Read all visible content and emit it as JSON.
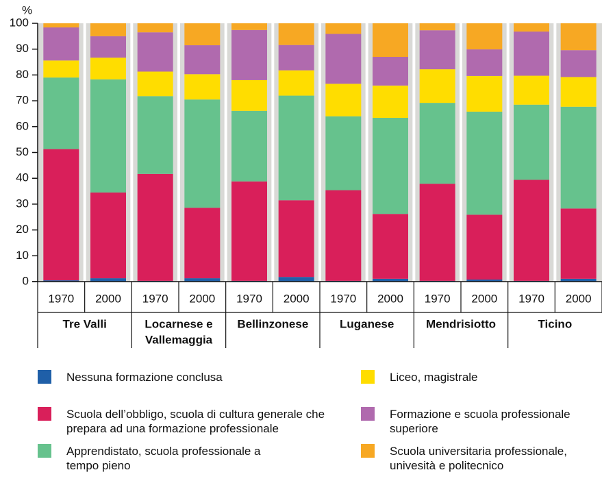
{
  "chart_data": {
    "type": "stacked_bar",
    "y_label": "%",
    "categories": [
      "1970",
      "2000",
      "1970",
      "2000",
      "1970",
      "2000",
      "1970",
      "2000",
      "1970",
      "2000",
      "1970",
      "2000"
    ],
    "groups": [
      [
        "Tre Valli"
      ],
      [
        "Locarnese e",
        "Vallemaggia"
      ],
      [
        "Bellinzonese"
      ],
      [
        "Luganese"
      ],
      [
        "Mendrisiotto"
      ],
      [
        "Ticino"
      ]
    ],
    "ylim": [
      0,
      100
    ],
    "yticks": [
      0,
      10,
      20,
      30,
      40,
      50,
      60,
      70,
      80,
      90,
      100
    ],
    "series": [
      {
        "name": "Nessuna formazione conclusa",
        "color": "#1f5fa8",
        "values": [
          0.5,
          1.3,
          0.3,
          1.3,
          0.3,
          1.8,
          0.3,
          1.1,
          0.3,
          0.8,
          0.3,
          1.1
        ]
      },
      {
        "name": "Scuola dell’obbligo, scuola di cultura generale che prepara ad una formazione professionale",
        "color": "#d91f5a",
        "values": [
          50.8,
          33.2,
          41.4,
          27.3,
          38.5,
          29.7,
          35.1,
          25.1,
          37.6,
          25.1,
          39.1,
          27.2
        ]
      },
      {
        "name": "Apprendistato, scuola professionale a tempo pieno",
        "color": "#66c28d",
        "values": [
          27.7,
          43.8,
          30.1,
          41.9,
          27.3,
          40.5,
          28.6,
          37.2,
          31.3,
          39.9,
          29.1,
          39.4
        ]
      },
      {
        "name": "Liceo, magistrale",
        "color": "#ffdd00",
        "values": [
          6.6,
          8.4,
          9.5,
          9.8,
          11.9,
          9.8,
          12.6,
          12.5,
          13.0,
          13.8,
          11.2,
          11.5
        ]
      },
      {
        "name": "Formazione e scuola professionale superiore",
        "color": "#b06aae",
        "values": [
          12.8,
          8.3,
          15.2,
          11.2,
          19.4,
          9.8,
          19.3,
          11.1,
          15.1,
          10.3,
          17.1,
          10.4
        ]
      },
      {
        "name": "Scuola universitaria professionale, univesità e politecnico",
        "color": "#f7a823",
        "values": [
          1.6,
          5.0,
          3.5,
          8.5,
          2.6,
          8.4,
          4.1,
          13.0,
          2.7,
          10.1,
          3.2,
          10.4
        ]
      }
    ]
  }
}
